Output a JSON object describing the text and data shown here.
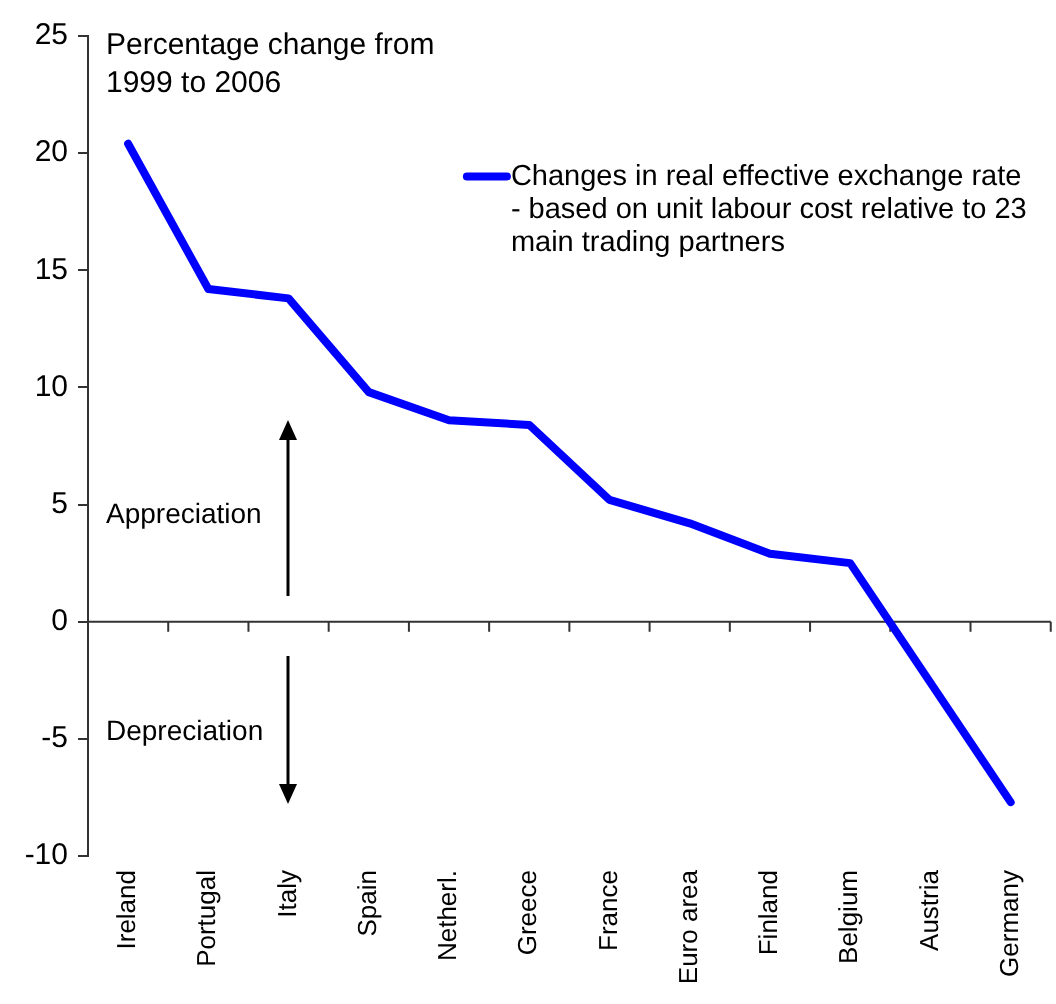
{
  "chart_data": {
    "type": "line",
    "ylabel": "Percentage change from 1999 to 2006",
    "annotations": [
      "Appreciation",
      "Depreciation"
    ],
    "categories": [
      "Ireland",
      "Portugal",
      "Italy",
      "Spain",
      "Netherl.",
      "Greece",
      "France",
      "Euro area",
      "Finland",
      "Belgium",
      "Austria",
      "Germany"
    ],
    "series": [
      {
        "name": "Changes in real effective exchange rate - based on unit labour cost relative to 23 main trading partners",
        "color": "#0000ff",
        "values": [
          20.4,
          14.2,
          13.8,
          9.8,
          8.6,
          8.4,
          5.2,
          4.2,
          2.9,
          2.5,
          -2.6,
          -7.7
        ]
      }
    ],
    "ylim": [
      -10,
      25
    ],
    "yticks": [
      -10,
      -5,
      0,
      5,
      10,
      15,
      20,
      25
    ],
    "legend": "top right"
  }
}
